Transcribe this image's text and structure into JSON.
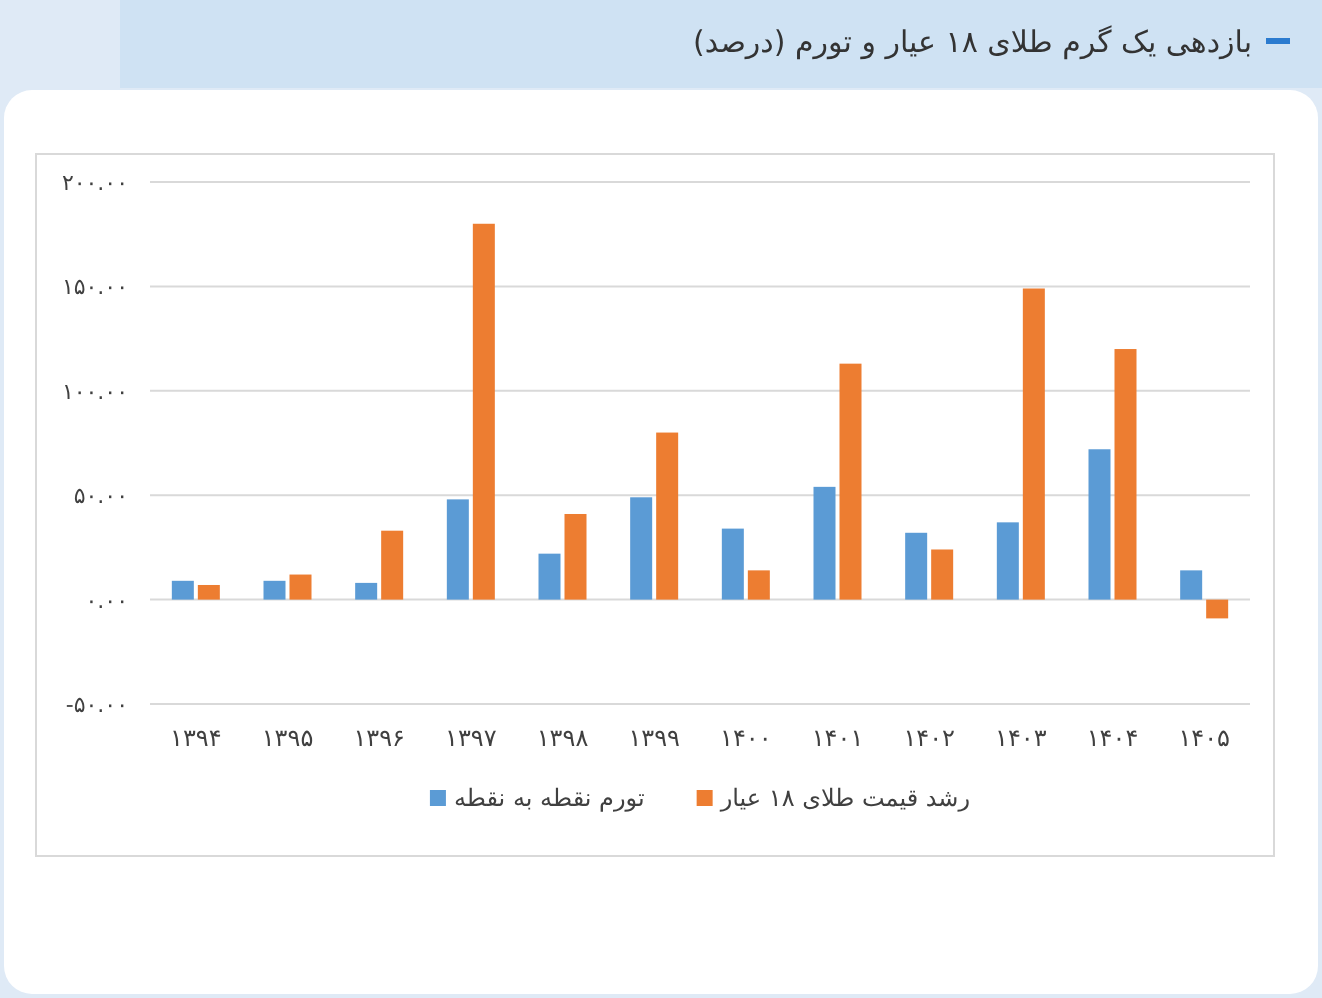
{
  "chart_data": {
    "type": "bar",
    "title": "بازدهی یک گرم طلای ۱۸ عیار و تورم (درصد)",
    "categories": [
      "۱۳۹۴",
      "۱۳۹۵",
      "۱۳۹۶",
      "۱۳۹۷",
      "۱۳۹۸",
      "۱۳۹۹",
      "۱۴۰۰",
      "۱۴۰۱",
      "۱۴۰۲",
      "۱۴۰۳",
      "۱۴۰۴",
      "۱۴۰۵"
    ],
    "series": [
      {
        "name": "تورم نقطه به نقطه",
        "color": "#5b9bd5",
        "values": [
          9,
          9,
          8,
          48,
          22,
          49,
          34,
          54,
          32,
          37,
          72,
          14
        ]
      },
      {
        "name": "رشد قیمت طلای ۱۸ عیار",
        "color": "#ed7d31",
        "values": [
          7,
          12,
          33,
          180,
          41,
          80,
          14,
          113,
          24,
          149,
          120,
          -9
        ]
      }
    ],
    "ylim": [
      -50,
      200
    ],
    "yticks": [
      {
        "value": -50,
        "label": "-۵۰.۰۰"
      },
      {
        "value": 0,
        "label": "۰.۰۰"
      },
      {
        "value": 50,
        "label": "۵۰.۰۰"
      },
      {
        "value": 100,
        "label": "۱۰۰.۰۰"
      },
      {
        "value": 150,
        "label": "۱۵۰.۰۰"
      },
      {
        "value": 200,
        "label": "۲۰۰.۰۰"
      }
    ],
    "grid": "y",
    "legend": "bottom"
  }
}
